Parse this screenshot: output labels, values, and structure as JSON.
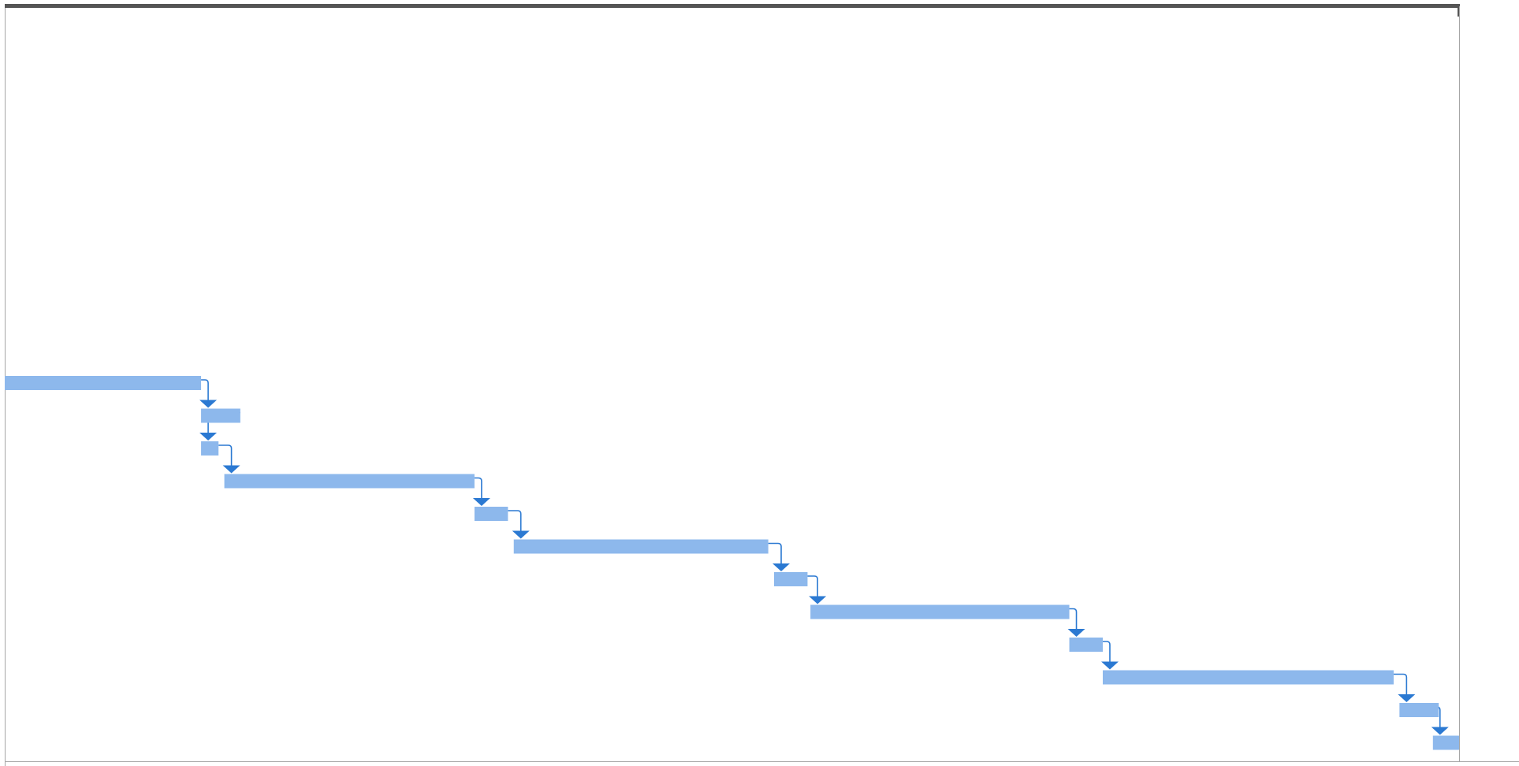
{
  "chart_data": {
    "type": "gantt",
    "title": "",
    "x_range": [
      0,
      100
    ],
    "tasks": [
      {
        "start": 0.0,
        "end": 13.5
      },
      {
        "start": 13.5,
        "end": 16.2
      },
      {
        "start": 13.5,
        "end": 14.7
      },
      {
        "start": 15.1,
        "end": 32.3
      },
      {
        "start": 32.3,
        "end": 34.6
      },
      {
        "start": 35.0,
        "end": 52.5
      },
      {
        "start": 52.9,
        "end": 55.2
      },
      {
        "start": 55.4,
        "end": 73.2
      },
      {
        "start": 73.2,
        "end": 75.5
      },
      {
        "start": 75.5,
        "end": 95.5
      },
      {
        "start": 95.9,
        "end": 98.6
      },
      {
        "start": 98.2,
        "end": 100.0
      }
    ],
    "dependencies": [
      {
        "from": 0,
        "to": 1
      },
      {
        "from": 1,
        "to": 2
      },
      {
        "from": 2,
        "to": 3
      },
      {
        "from": 3,
        "to": 4
      },
      {
        "from": 4,
        "to": 5
      },
      {
        "from": 5,
        "to": 6
      },
      {
        "from": 6,
        "to": 7
      },
      {
        "from": 7,
        "to": 8
      },
      {
        "from": 8,
        "to": 9
      },
      {
        "from": 9,
        "to": 10
      },
      {
        "from": 10,
        "to": 11
      }
    ],
    "colors": {
      "bar": "#8db8ec",
      "link": "#2b79d2",
      "top_rule": "#555555",
      "frame": "#a6a6a6"
    }
  }
}
